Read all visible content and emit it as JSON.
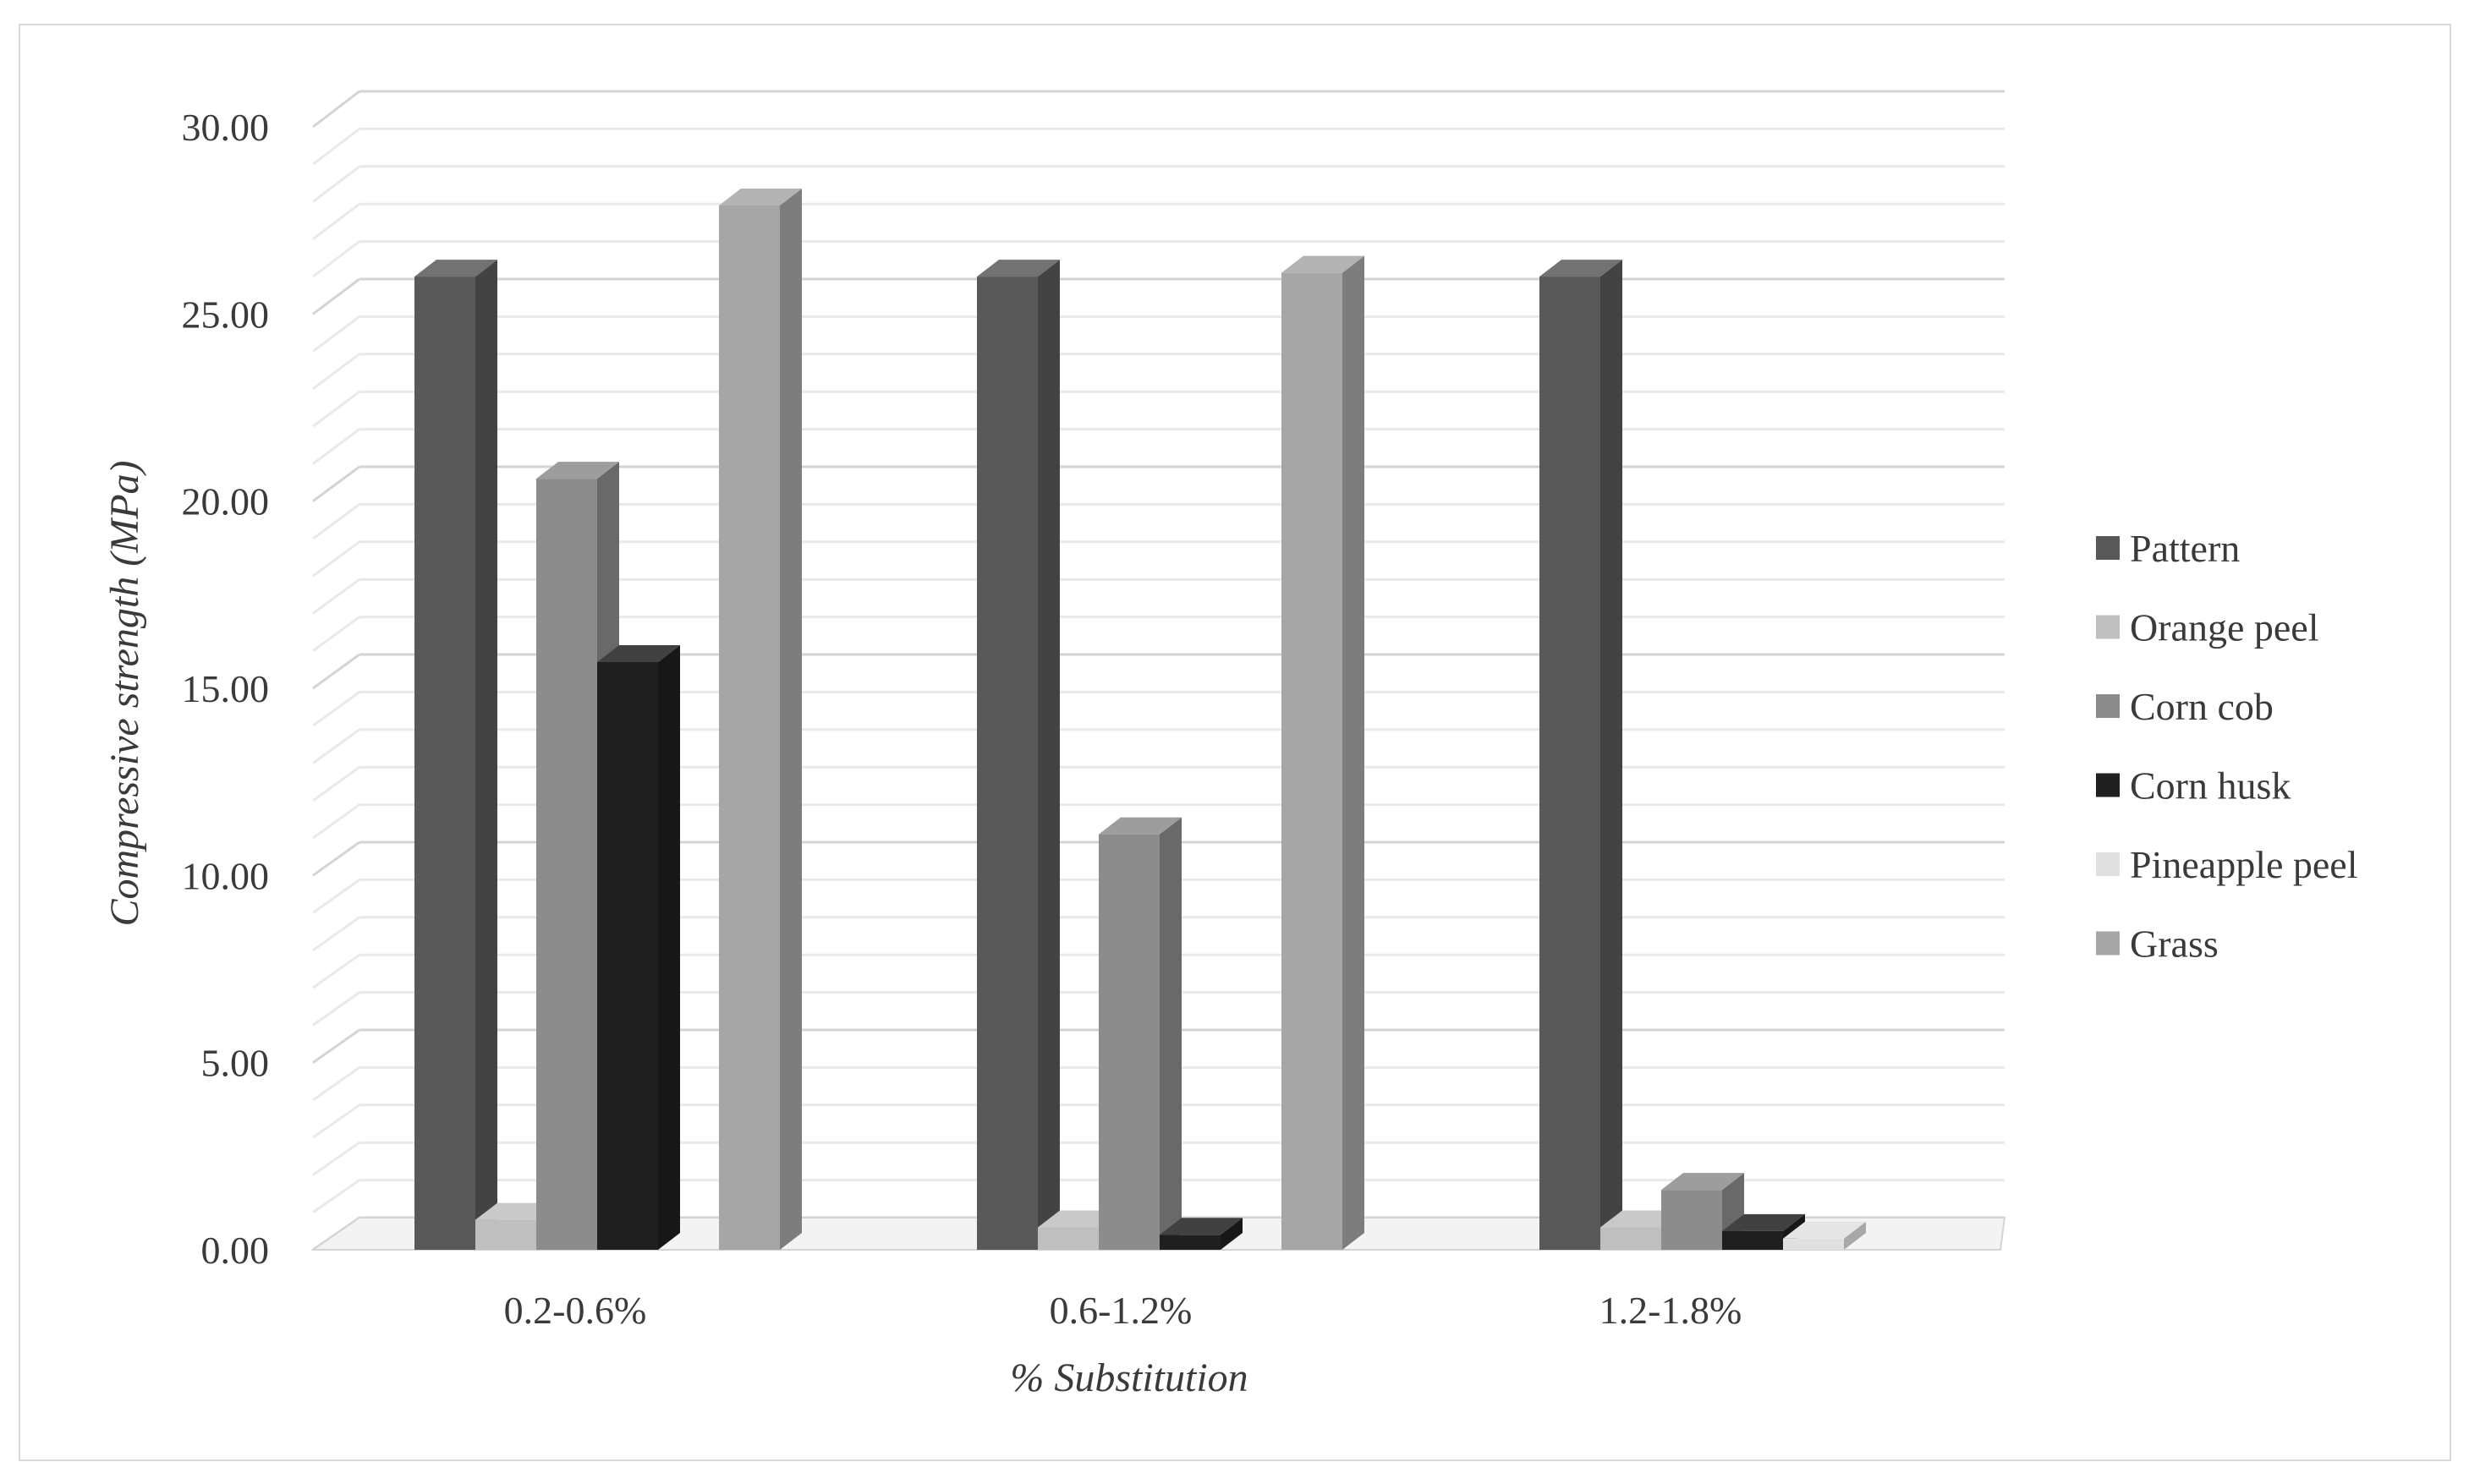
{
  "chart_data": {
    "type": "bar",
    "style": "3d-clustered-column",
    "categories": [
      "0.2-0.6%",
      "0.6-1.2%",
      "1.2-1.8%"
    ],
    "series": [
      {
        "name": "Pattern",
        "values": [
          26.0,
          26.0,
          26.0
        ],
        "color": "#595959"
      },
      {
        "name": "Orange peel",
        "values": [
          0.8,
          0.6,
          0.6
        ],
        "color": "#bfbfbf"
      },
      {
        "name": "Corn cob",
        "values": [
          20.6,
          11.1,
          1.6
        ],
        "color": "#8c8c8c"
      },
      {
        "name": "Corn husk",
        "values": [
          15.7,
          0.4,
          0.5
        ],
        "color": "#1f1f1f"
      },
      {
        "name": "Pineapple peel",
        "values": [
          0,
          0,
          0.3
        ],
        "color": "#e0e0e0"
      },
      {
        "name": "Grass",
        "values": [
          27.9,
          26.1,
          0
        ],
        "color": "#a6a6a6"
      }
    ],
    "ylabel": "Compressive strength (MPa)",
    "xlabel": "% Substitution",
    "yticks": [
      "0.00",
      "5.00",
      "10.00",
      "15.00",
      "20.00",
      "25.00",
      "30.00"
    ],
    "ylim": [
      0,
      30
    ],
    "minor_gridlines_step": 1,
    "grid": true,
    "legend_position": "right"
  }
}
